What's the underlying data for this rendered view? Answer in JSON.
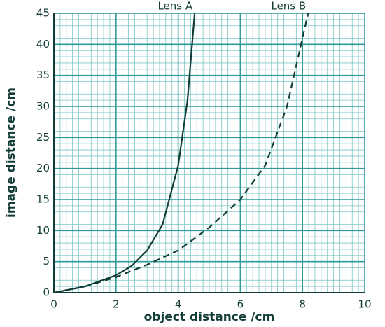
{
  "chart_data": {
    "type": "line",
    "xlabel": "object distance /cm",
    "ylabel": "image distance /cm",
    "xlim": [
      0,
      10
    ],
    "ylim": [
      0,
      45
    ],
    "xticks": [
      0,
      2,
      4,
      6,
      8,
      10
    ],
    "yticks": [
      0,
      5,
      10,
      15,
      20,
      25,
      30,
      35,
      40,
      45
    ],
    "grid": true,
    "series": [
      {
        "name": "Lens A",
        "color": "#123c36",
        "dash": false,
        "x": [
          0,
          1,
          2,
          2.5,
          3,
          3.5,
          4,
          4.3,
          4.53
        ],
        "values": [
          0,
          1,
          2.8,
          4.3,
          6.8,
          11,
          20.5,
          31,
          45
        ]
      },
      {
        "name": "Lens B",
        "color": "#123c36",
        "dash": true,
        "x": [
          0,
          1,
          2,
          3,
          4,
          5,
          6,
          6.8,
          7.5,
          8.18
        ],
        "values": [
          0,
          1,
          2.5,
          4.5,
          6.8,
          10.5,
          15,
          20.5,
          30,
          45
        ]
      }
    ]
  }
}
